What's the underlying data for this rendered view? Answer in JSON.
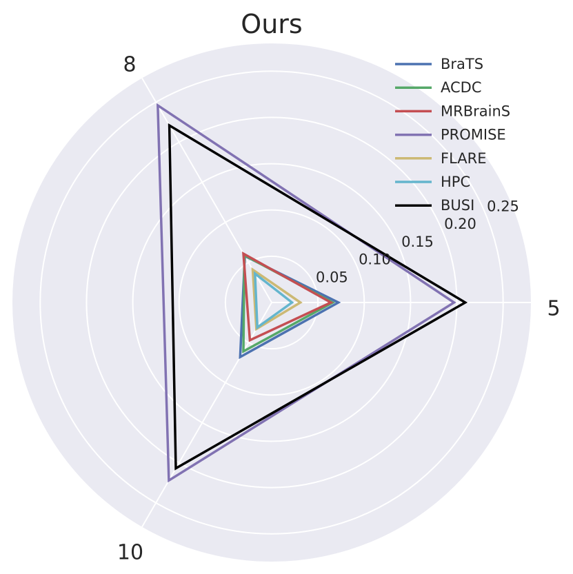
{
  "chart_data": {
    "type": "radar",
    "title": "Ours",
    "axes": [
      "5",
      "8",
      "10"
    ],
    "rlim": [
      0,
      0.28
    ],
    "rticks": [
      0.05,
      0.1,
      0.15,
      0.2,
      0.25
    ],
    "rtick_labels": [
      "0.05",
      "0.10",
      "0.15",
      "0.20",
      "0.25"
    ],
    "grid": true,
    "legend_position": "top-right",
    "series": [
      {
        "name": "BraTS",
        "values": [
          0.072,
          0.058,
          0.068
        ],
        "color": "#4c72b0"
      },
      {
        "name": "ACDC",
        "values": [
          0.066,
          0.059,
          0.061
        ],
        "color": "#55a868"
      },
      {
        "name": "MRBrainS",
        "values": [
          0.064,
          0.061,
          0.047
        ],
        "color": "#c44e52"
      },
      {
        "name": "PROMISE",
        "values": [
          0.197,
          0.246,
          0.222
        ],
        "color": "#8172b2"
      },
      {
        "name": "FLARE",
        "values": [
          0.031,
          0.041,
          0.033
        ],
        "color": "#ccb974"
      },
      {
        "name": "HPC",
        "values": [
          0.022,
          0.036,
          0.031
        ],
        "color": "#64b5cd"
      },
      {
        "name": "BUSI",
        "values": [
          0.209,
          0.221,
          0.207
        ],
        "color": "#000000"
      }
    ]
  }
}
